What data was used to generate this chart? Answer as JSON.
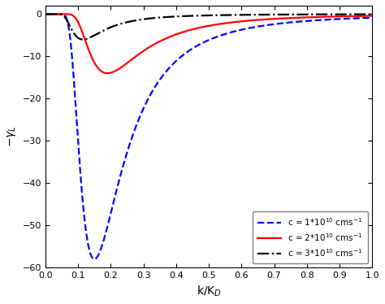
{
  "title": "",
  "xlabel": "k/K$_D$",
  "ylabel": "$-\\gamma_L$",
  "xlim": [
    0,
    1.0
  ],
  "ylim": [
    -60,
    2
  ],
  "yticks": [
    0,
    -10,
    -20,
    -30,
    -40,
    -50,
    -60
  ],
  "xticks": [
    0,
    0.1,
    0.2,
    0.3,
    0.4,
    0.5,
    0.6,
    0.7,
    0.8,
    0.9,
    1.0
  ],
  "curves": [
    {
      "color": "blue",
      "linestyle": "--",
      "linewidth": 1.6,
      "amp": 0.012,
      "B": 0.03,
      "label": "c = 1*10$^{10}$ cms$^{-1}$"
    },
    {
      "color": "red",
      "linestyle": "-",
      "linewidth": 1.6,
      "amp": 0.04,
      "B": 0.058,
      "label": "c = 2*10$^{10}$ cms$^{-1}$"
    },
    {
      "color": "black",
      "linestyle": "-.",
      "linewidth": 1.6,
      "amp": 0.09,
      "B": 0.09,
      "label": "c = 3*10$^{10}$ cms$^{-1}$"
    }
  ],
  "background_color": "#ffffff"
}
